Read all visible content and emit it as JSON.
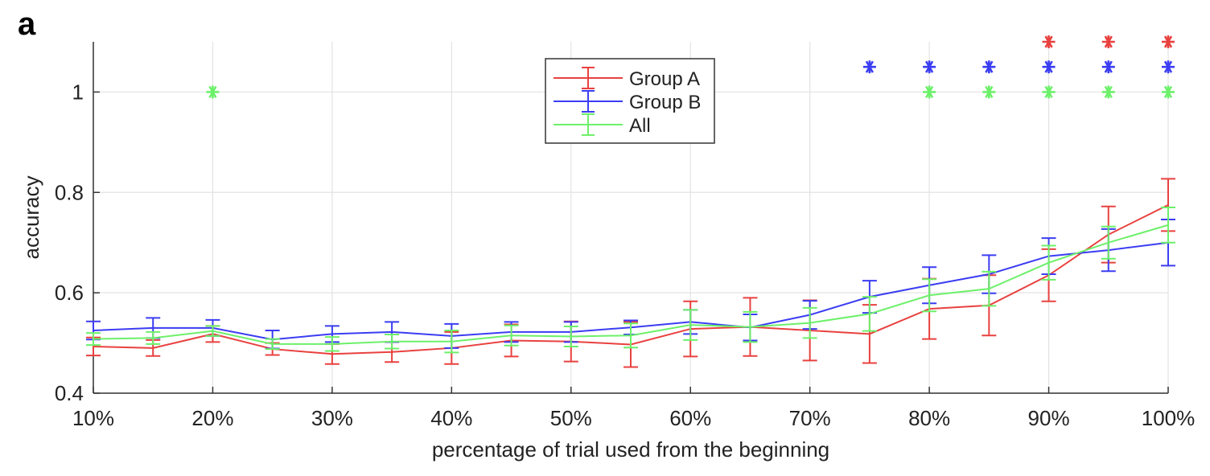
{
  "panel_label": "a",
  "chart_data": {
    "type": "line",
    "title": "",
    "xlabel": "percentage of trial used from the beginning",
    "ylabel": "accuracy",
    "x": [
      10,
      15,
      20,
      25,
      30,
      35,
      40,
      45,
      50,
      55,
      60,
      65,
      70,
      75,
      80,
      85,
      90,
      95,
      100
    ],
    "xticks": [
      10,
      20,
      30,
      40,
      50,
      60,
      70,
      80,
      90,
      100
    ],
    "xtick_labels": [
      "10%",
      "20%",
      "30%",
      "40%",
      "50%",
      "60%",
      "70%",
      "80%",
      "90%",
      "100%"
    ],
    "xlim": [
      10,
      100
    ],
    "ylim": [
      0.4,
      1.1
    ],
    "yticks": [
      0.4,
      0.6,
      0.8,
      1
    ],
    "ytick_labels": [
      "0.4",
      "0.6",
      "0.8",
      "1"
    ],
    "grid": true,
    "legend_position": "top-center",
    "series": [
      {
        "name": "Group A",
        "color": "#e8413f",
        "values": [
          0.493,
          0.49,
          0.518,
          0.488,
          0.478,
          0.482,
          0.49,
          0.505,
          0.503,
          0.497,
          0.528,
          0.532,
          0.525,
          0.518,
          0.568,
          0.575,
          0.635,
          0.716,
          0.775
        ],
        "err": [
          0.018,
          0.016,
          0.016,
          0.012,
          0.02,
          0.02,
          0.032,
          0.032,
          0.04,
          0.045,
          0.055,
          0.058,
          0.06,
          0.058,
          0.06,
          0.06,
          0.052,
          0.056,
          0.052
        ]
      },
      {
        "name": "Group B",
        "color": "#3b3df2",
        "values": [
          0.525,
          0.53,
          0.53,
          0.507,
          0.518,
          0.522,
          0.514,
          0.522,
          0.522,
          0.531,
          0.542,
          0.531,
          0.556,
          0.592,
          0.615,
          0.637,
          0.673,
          0.685,
          0.7
        ],
        "err": [
          0.018,
          0.02,
          0.016,
          0.018,
          0.016,
          0.02,
          0.024,
          0.02,
          0.02,
          0.014,
          0.024,
          0.026,
          0.028,
          0.032,
          0.036,
          0.038,
          0.036,
          0.042,
          0.046
        ]
      },
      {
        "name": "All",
        "color": "#6df06a",
        "values": [
          0.508,
          0.51,
          0.524,
          0.498,
          0.498,
          0.503,
          0.503,
          0.515,
          0.513,
          0.515,
          0.536,
          0.532,
          0.54,
          0.558,
          0.595,
          0.608,
          0.66,
          0.7,
          0.735
        ],
        "err": [
          0.012,
          0.012,
          0.01,
          0.01,
          0.014,
          0.014,
          0.022,
          0.02,
          0.02,
          0.024,
          0.03,
          0.03,
          0.03,
          0.034,
          0.032,
          0.034,
          0.034,
          0.032,
          0.035
        ]
      }
    ],
    "significance_markers": [
      {
        "series": "All",
        "color": "#6df06a",
        "y": 1.0,
        "x": [
          20,
          80,
          85,
          90,
          95,
          100
        ]
      },
      {
        "series": "Group B",
        "color": "#3b3df2",
        "y": 1.05,
        "x": [
          75,
          80,
          85,
          90,
          95,
          100
        ]
      },
      {
        "series": "Group A",
        "color": "#e8413f",
        "y": 1.1,
        "x": [
          90,
          95,
          100
        ]
      }
    ]
  }
}
